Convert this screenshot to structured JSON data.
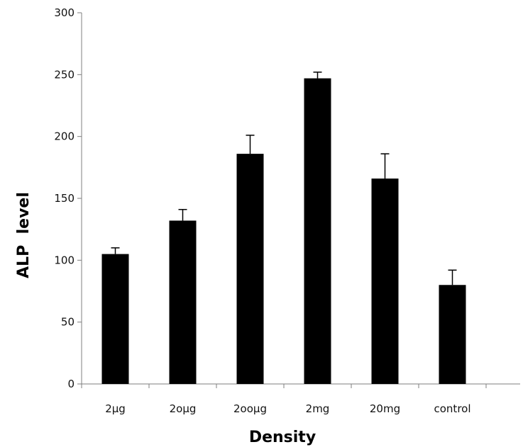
{
  "chart_data": {
    "type": "bar",
    "title": "",
    "xlabel": "Density",
    "ylabel": "ALP  level",
    "categories": [
      "2µg",
      "2oµg",
      "2ooµg",
      "2mg",
      "20mg",
      "control"
    ],
    "values": [
      105,
      132,
      186,
      247,
      166,
      80
    ],
    "error_bars": [
      5,
      9,
      15,
      5,
      20,
      12
    ],
    "ylim": [
      0,
      300
    ],
    "yticks": [
      "0",
      "50",
      "100",
      "150",
      "200",
      "250",
      "300"
    ],
    "grid": false,
    "legend": "none",
    "bar_color": "#000000",
    "axis_color": "#7f7f7f"
  }
}
